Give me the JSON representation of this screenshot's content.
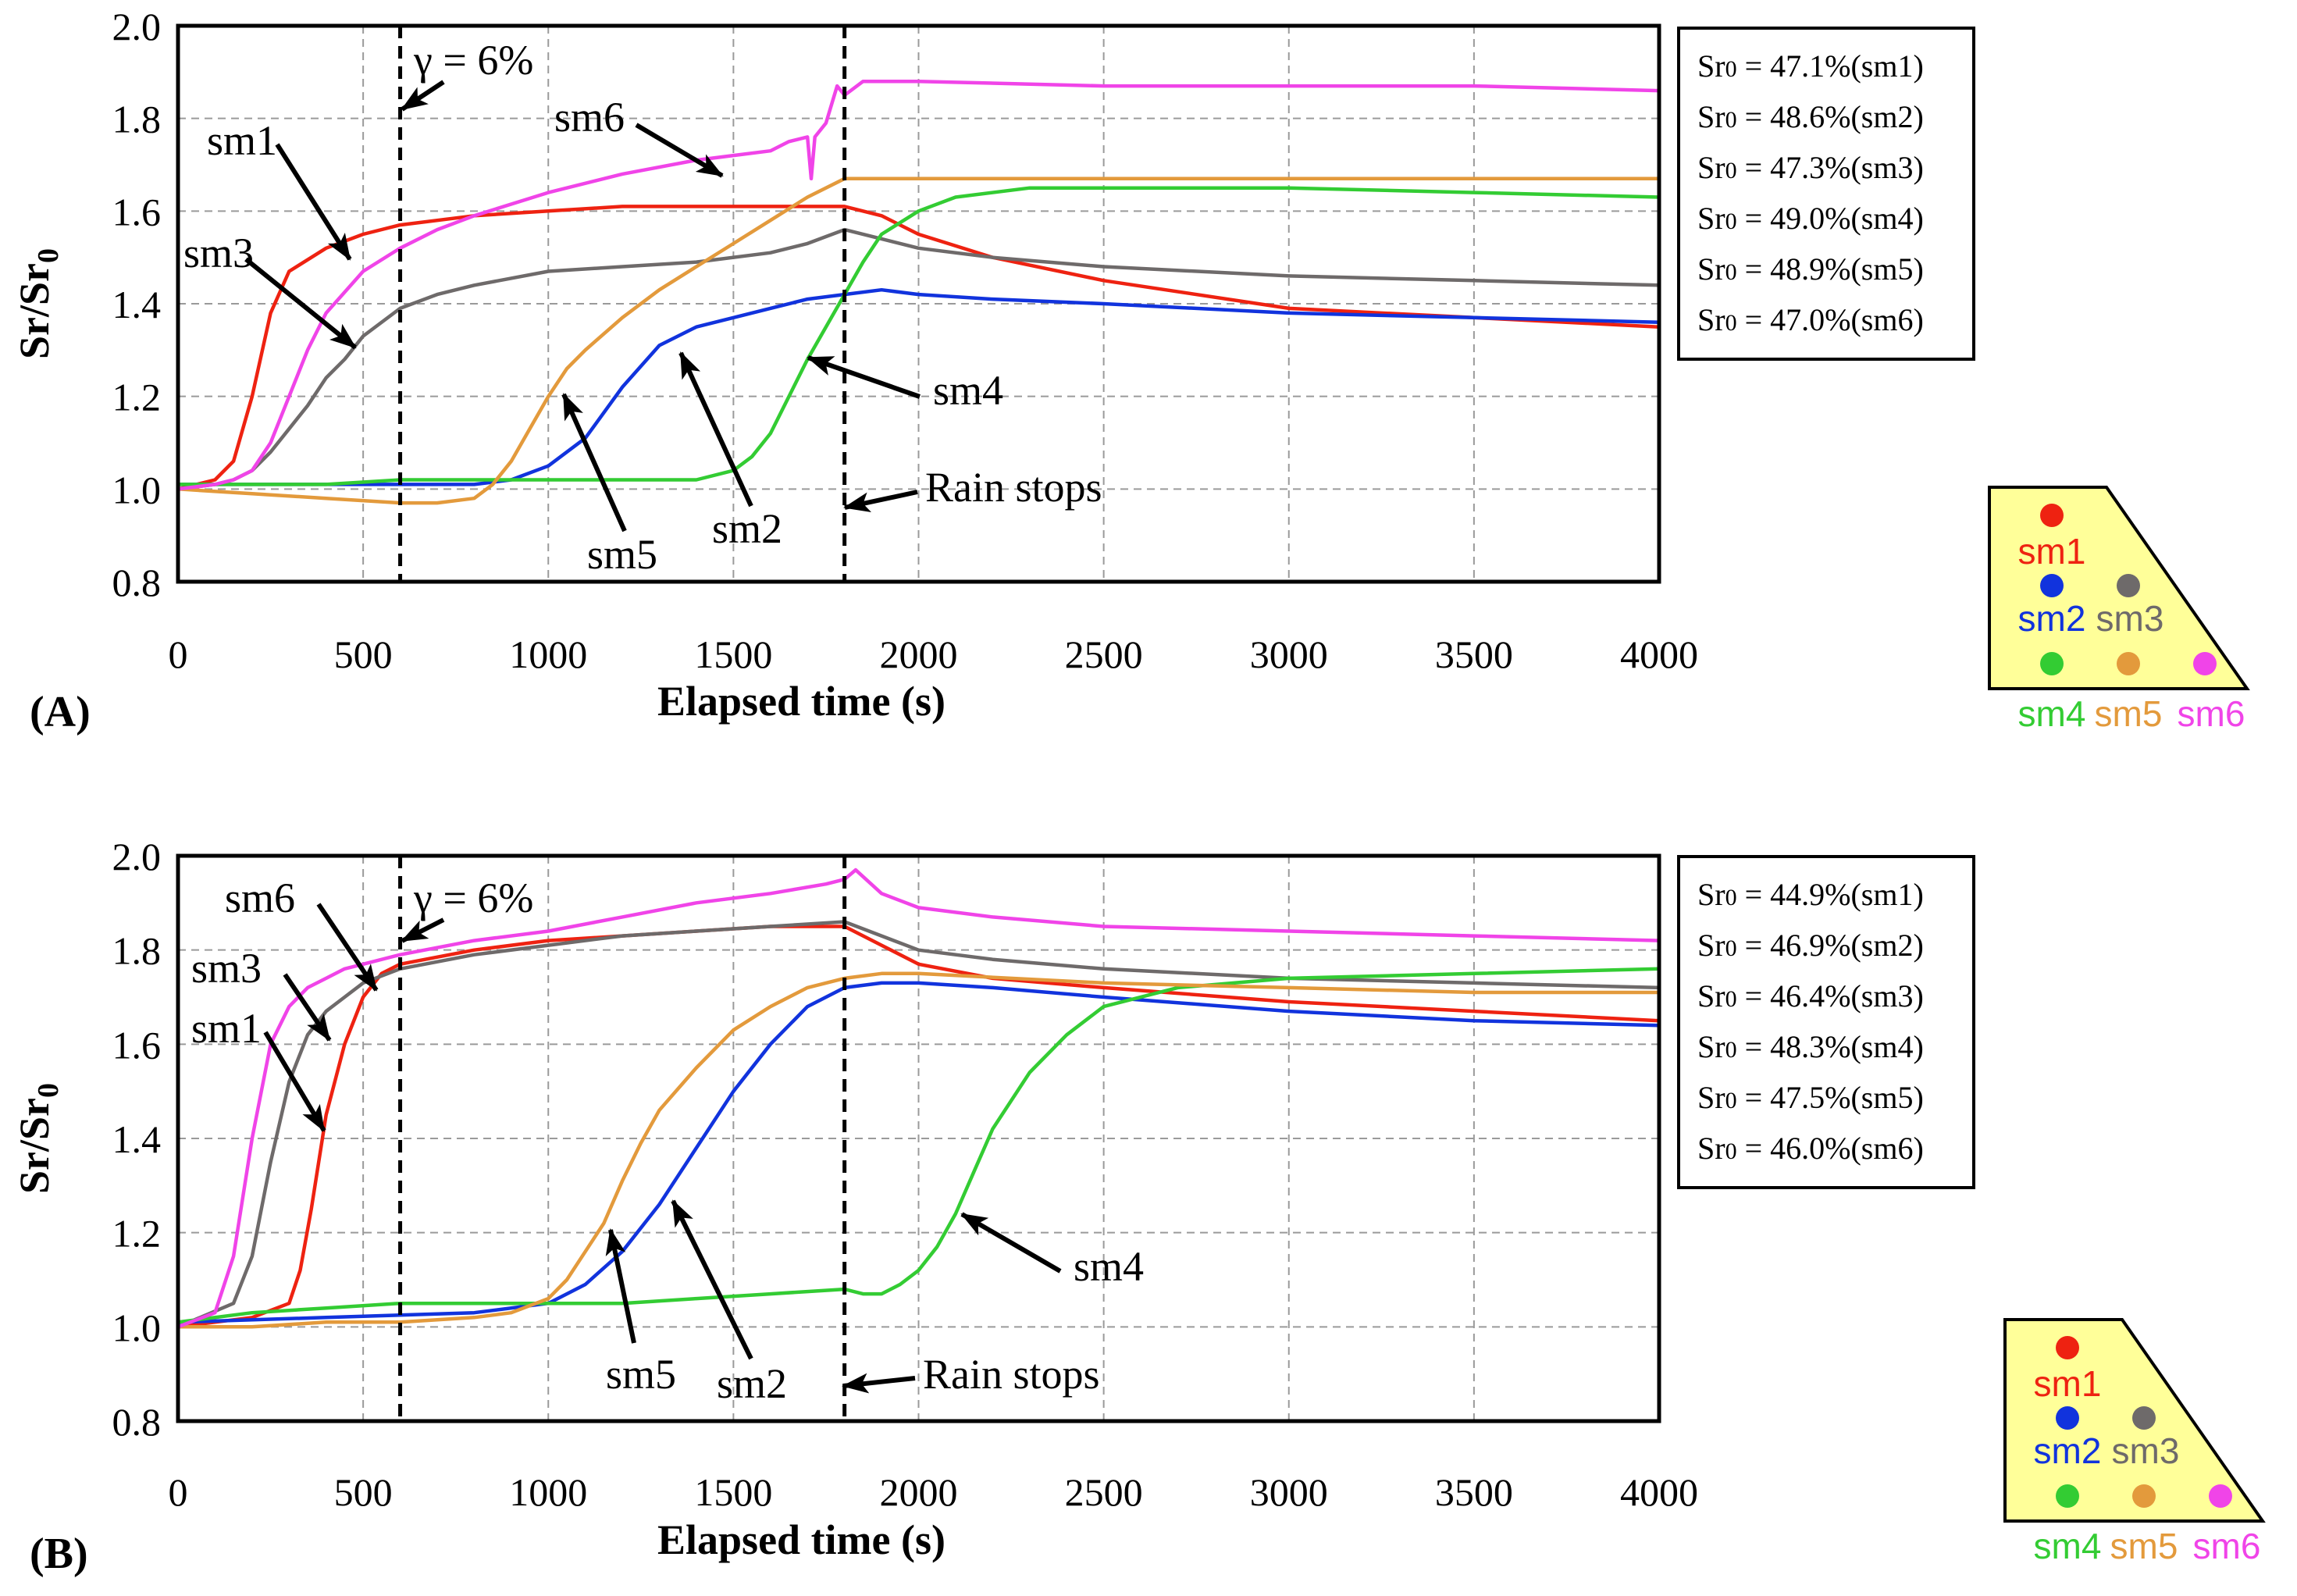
{
  "chart_data": [
    {
      "panel_label": "(A)",
      "type": "line",
      "xlabel": "Elapsed time (s)",
      "ylabel": "Sr/Sr0",
      "ylabel_parts": {
        "main": "Sr/Sr",
        "sub": "0"
      },
      "xlim": [
        0,
        4000
      ],
      "ylim": [
        0.8,
        2.0
      ],
      "xticks": [
        "0",
        "500",
        "1000",
        "1500",
        "2000",
        "2500",
        "3000",
        "3500",
        "4000"
      ],
      "yticks": [
        "0.8",
        "1.0",
        "1.2",
        "1.4",
        "1.6",
        "1.8",
        "2.0"
      ],
      "grid": true,
      "vlines": [
        {
          "x": 600,
          "label": "γ = 6%"
        },
        {
          "x": 1800,
          "label": "Rain stops"
        }
      ],
      "legend_box": [
        "Sr0 = 47.1%(sm1)",
        "Sr0 = 48.6%(sm2)",
        "Sr0 = 47.3%(sm3)",
        "Sr0 = 49.0%(sm4)",
        "Sr0 = 48.9%(sm5)",
        "Sr0 = 47.0%(sm6)"
      ],
      "series": [
        {
          "name": "sm1",
          "color": "#ee2211",
          "x": [
            0,
            100,
            150,
            200,
            250,
            300,
            400,
            500,
            600,
            800,
            1000,
            1200,
            1400,
            1600,
            1800,
            1900,
            2000,
            2200,
            2500,
            3000,
            3500,
            4000
          ],
          "y": [
            1.0,
            1.02,
            1.06,
            1.2,
            1.38,
            1.47,
            1.52,
            1.55,
            1.57,
            1.59,
            1.6,
            1.61,
            1.61,
            1.61,
            1.61,
            1.59,
            1.55,
            1.5,
            1.45,
            1.39,
            1.37,
            1.35
          ]
        },
        {
          "name": "sm2",
          "color": "#1133dd",
          "x": [
            0,
            200,
            400,
            600,
            800,
            900,
            1000,
            1100,
            1200,
            1300,
            1400,
            1500,
            1600,
            1700,
            1800,
            1900,
            2000,
            2200,
            2500,
            3000,
            3500,
            4000
          ],
          "y": [
            1.01,
            1.01,
            1.01,
            1.01,
            1.01,
            1.02,
            1.05,
            1.11,
            1.22,
            1.31,
            1.35,
            1.37,
            1.39,
            1.41,
            1.42,
            1.43,
            1.42,
            1.41,
            1.4,
            1.38,
            1.37,
            1.36
          ]
        },
        {
          "name": "sm3",
          "color": "#6e6a6a",
          "x": [
            0,
            100,
            150,
            200,
            250,
            300,
            350,
            400,
            450,
            500,
            600,
            700,
            800,
            1000,
            1200,
            1400,
            1600,
            1700,
            1800,
            1900,
            2000,
            2200,
            2500,
            3000,
            3500,
            4000
          ],
          "y": [
            1.0,
            1.01,
            1.02,
            1.04,
            1.08,
            1.13,
            1.18,
            1.24,
            1.28,
            1.33,
            1.39,
            1.42,
            1.44,
            1.47,
            1.48,
            1.49,
            1.51,
            1.53,
            1.56,
            1.54,
            1.52,
            1.5,
            1.48,
            1.46,
            1.45,
            1.44
          ]
        },
        {
          "name": "sm4",
          "color": "#33cc33",
          "x": [
            0,
            200,
            400,
            600,
            800,
            1000,
            1200,
            1400,
            1500,
            1550,
            1600,
            1650,
            1700,
            1750,
            1800,
            1850,
            1900,
            2000,
            2100,
            2300,
            2500,
            3000,
            3500,
            4000
          ],
          "y": [
            1.01,
            1.01,
            1.01,
            1.02,
            1.02,
            1.02,
            1.02,
            1.02,
            1.04,
            1.07,
            1.12,
            1.2,
            1.28,
            1.35,
            1.42,
            1.49,
            1.55,
            1.6,
            1.63,
            1.65,
            1.65,
            1.65,
            1.64,
            1.63
          ]
        },
        {
          "name": "sm5",
          "color": "#e39a3c",
          "x": [
            0,
            200,
            400,
            600,
            700,
            800,
            850,
            900,
            950,
            1000,
            1050,
            1100,
            1200,
            1300,
            1400,
            1500,
            1600,
            1700,
            1800,
            2000,
            2500,
            3000,
            3500,
            4000
          ],
          "y": [
            1.0,
            0.99,
            0.98,
            0.97,
            0.97,
            0.98,
            1.01,
            1.06,
            1.13,
            1.2,
            1.26,
            1.3,
            1.37,
            1.43,
            1.48,
            1.53,
            1.58,
            1.63,
            1.67,
            1.67,
            1.67,
            1.67,
            1.67,
            1.67
          ]
        },
        {
          "name": "sm6",
          "color": "#f044e8",
          "x": [
            0,
            100,
            150,
            200,
            250,
            300,
            350,
            400,
            500,
            600,
            700,
            800,
            1000,
            1200,
            1400,
            1500,
            1600,
            1650,
            1700,
            1710,
            1720,
            1750,
            1780,
            1800,
            1850,
            2000,
            2500,
            3000,
            3500,
            4000
          ],
          "y": [
            1.0,
            1.01,
            1.02,
            1.04,
            1.1,
            1.2,
            1.3,
            1.38,
            1.47,
            1.52,
            1.56,
            1.59,
            1.64,
            1.68,
            1.71,
            1.72,
            1.73,
            1.75,
            1.76,
            1.67,
            1.76,
            1.79,
            1.87,
            1.85,
            1.88,
            1.88,
            1.87,
            1.87,
            1.87,
            1.86
          ]
        }
      ],
      "annotations": [
        "γ = 6%",
        "sm1",
        "sm3",
        "sm6",
        "sm5",
        "sm2",
        "sm4",
        "Rain stops"
      ]
    },
    {
      "panel_label": "(B)",
      "type": "line",
      "xlabel": "Elapsed time (s)",
      "ylabel": "Sr/Sr0",
      "ylabel_parts": {
        "main": "Sr/Sr",
        "sub": "0"
      },
      "xlim": [
        0,
        4000
      ],
      "ylim": [
        0.8,
        2.0
      ],
      "xticks": [
        "0",
        "500",
        "1000",
        "1500",
        "2000",
        "2500",
        "3000",
        "3500",
        "4000"
      ],
      "yticks": [
        "0.8",
        "1.0",
        "1.2",
        "1.4",
        "1.6",
        "1.8",
        "2.0"
      ],
      "grid": true,
      "vlines": [
        {
          "x": 600,
          "label": "γ = 6%"
        },
        {
          "x": 1800,
          "label": "Rain stops"
        }
      ],
      "legend_box": [
        "Sr0 = 44.9%(sm1)",
        "Sr0 = 46.9%(sm2)",
        "Sr0 = 46.4%(sm3)",
        "Sr0 = 48.3%(sm4)",
        "Sr0 = 47.5%(sm5)",
        "Sr0 = 46.0%(sm6)"
      ],
      "series": [
        {
          "name": "sm1",
          "color": "#ee2211",
          "x": [
            0,
            200,
            300,
            330,
            360,
            400,
            450,
            500,
            550,
            600,
            800,
            1000,
            1200,
            1400,
            1600,
            1800,
            1900,
            2000,
            2200,
            2500,
            3000,
            3500,
            4000
          ],
          "y": [
            1.0,
            1.02,
            1.05,
            1.12,
            1.25,
            1.45,
            1.6,
            1.7,
            1.75,
            1.77,
            1.8,
            1.82,
            1.83,
            1.84,
            1.85,
            1.85,
            1.81,
            1.77,
            1.74,
            1.72,
            1.69,
            1.67,
            1.65
          ]
        },
        {
          "name": "sm2",
          "color": "#1133dd",
          "x": [
            0,
            400,
            800,
            1000,
            1100,
            1200,
            1300,
            1400,
            1500,
            1600,
            1700,
            1800,
            1900,
            2000,
            2200,
            2500,
            3000,
            3500,
            4000
          ],
          "y": [
            1.01,
            1.02,
            1.03,
            1.05,
            1.09,
            1.16,
            1.26,
            1.38,
            1.5,
            1.6,
            1.68,
            1.72,
            1.73,
            1.73,
            1.72,
            1.7,
            1.67,
            1.65,
            1.64
          ]
        },
        {
          "name": "sm3",
          "color": "#6e6a6a",
          "x": [
            0,
            150,
            200,
            250,
            300,
            350,
            400,
            450,
            500,
            600,
            800,
            1000,
            1200,
            1400,
            1600,
            1800,
            1900,
            2000,
            2200,
            2500,
            3000,
            3500,
            4000
          ],
          "y": [
            1.0,
            1.05,
            1.15,
            1.35,
            1.52,
            1.62,
            1.67,
            1.7,
            1.73,
            1.76,
            1.79,
            1.81,
            1.83,
            1.84,
            1.85,
            1.86,
            1.83,
            1.8,
            1.78,
            1.76,
            1.74,
            1.73,
            1.72
          ]
        },
        {
          "name": "sm4",
          "color": "#33cc33",
          "x": [
            0,
            200,
            400,
            600,
            800,
            1000,
            1200,
            1400,
            1600,
            1800,
            1850,
            1900,
            1950,
            2000,
            2050,
            2100,
            2150,
            2200,
            2300,
            2400,
            2500,
            2700,
            3000,
            3500,
            4000
          ],
          "y": [
            1.01,
            1.03,
            1.04,
            1.05,
            1.05,
            1.05,
            1.05,
            1.06,
            1.07,
            1.08,
            1.07,
            1.07,
            1.09,
            1.12,
            1.17,
            1.24,
            1.33,
            1.42,
            1.54,
            1.62,
            1.68,
            1.72,
            1.74,
            1.75,
            1.76
          ]
        },
        {
          "name": "sm5",
          "color": "#e39a3c",
          "x": [
            0,
            200,
            400,
            600,
            800,
            900,
            1000,
            1050,
            1100,
            1150,
            1200,
            1250,
            1300,
            1400,
            1500,
            1600,
            1700,
            1800,
            1900,
            2000,
            2500,
            3000,
            3500,
            4000
          ],
          "y": [
            1.0,
            1.0,
            1.01,
            1.01,
            1.02,
            1.03,
            1.06,
            1.1,
            1.16,
            1.22,
            1.31,
            1.39,
            1.46,
            1.55,
            1.63,
            1.68,
            1.72,
            1.74,
            1.75,
            1.75,
            1.73,
            1.72,
            1.71,
            1.71
          ]
        },
        {
          "name": "sm6",
          "color": "#f044e8",
          "x": [
            0,
            100,
            150,
            200,
            250,
            300,
            350,
            400,
            450,
            500,
            600,
            800,
            1000,
            1200,
            1400,
            1600,
            1750,
            1800,
            1830,
            1900,
            2000,
            2200,
            2500,
            3000,
            3500,
            4000
          ],
          "y": [
            1.0,
            1.03,
            1.15,
            1.4,
            1.6,
            1.68,
            1.72,
            1.74,
            1.76,
            1.77,
            1.79,
            1.82,
            1.84,
            1.87,
            1.9,
            1.92,
            1.94,
            1.95,
            1.97,
            1.92,
            1.89,
            1.87,
            1.85,
            1.84,
            1.83,
            1.82
          ]
        }
      ],
      "annotations": [
        "γ = 6%",
        "sm6",
        "sm3",
        "sm1",
        "sm5",
        "sm2",
        "sm4",
        "Rain stops"
      ]
    }
  ],
  "sensor_maps": [
    {
      "labels": [
        "sm1",
        "sm2",
        "sm3",
        "sm4",
        "sm5",
        "sm6"
      ],
      "colors": [
        "#ee2211",
        "#1133dd",
        "#6e6a6a",
        "#33cc33",
        "#e39a3c",
        "#f044e8"
      ],
      "fill": "#ffff99"
    },
    {
      "labels": [
        "sm1",
        "sm2",
        "sm3",
        "sm4",
        "sm5",
        "sm6"
      ],
      "colors": [
        "#ee2211",
        "#1133dd",
        "#6e6a6a",
        "#33cc33",
        "#e39a3c",
        "#f044e8"
      ],
      "fill": "#ffff99"
    }
  ]
}
